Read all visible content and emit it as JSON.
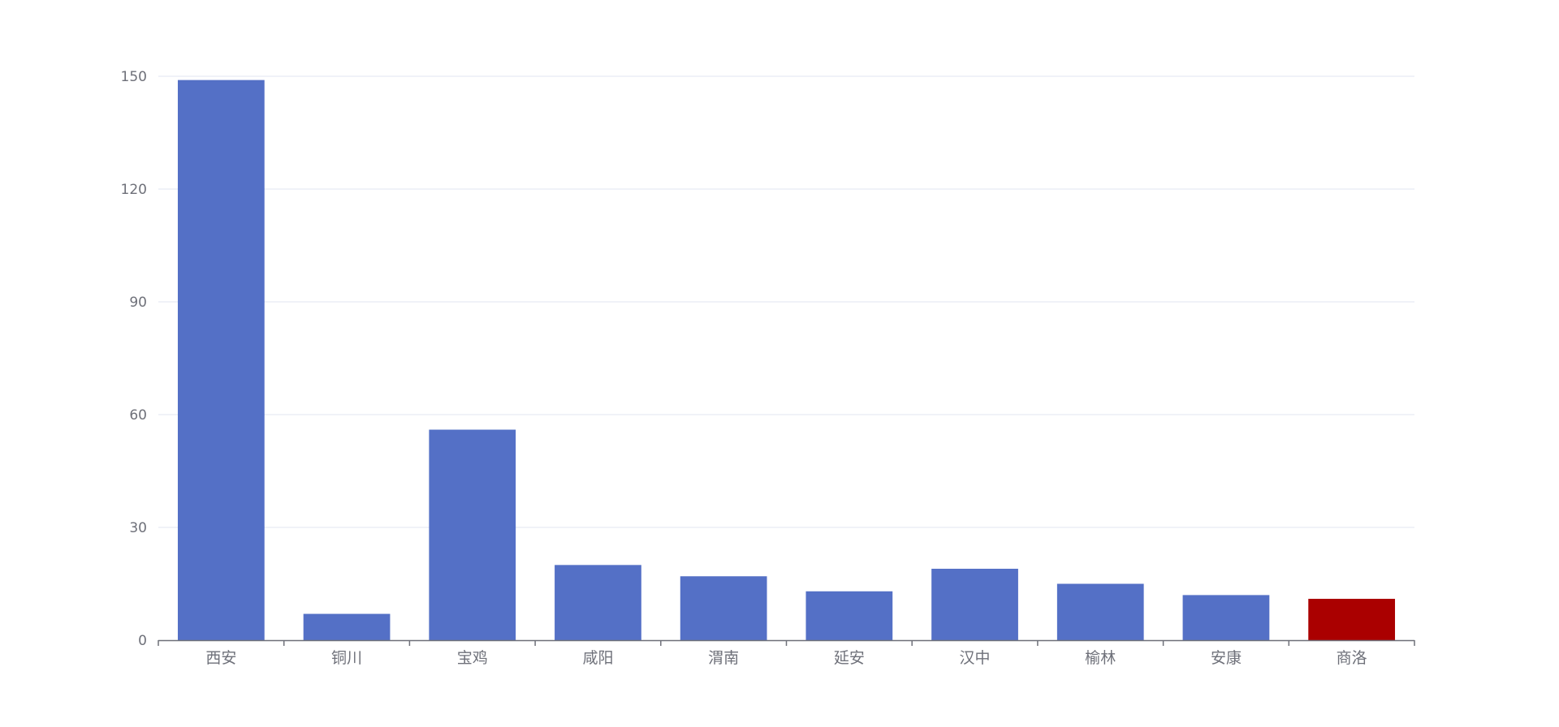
{
  "chart_data": {
    "type": "bar",
    "categories": [
      "西安",
      "铜川",
      "宝鸡",
      "咸阳",
      "渭南",
      "延安",
      "汉中",
      "榆林",
      "安康",
      "商洛"
    ],
    "values": [
      149,
      7,
      56,
      20,
      17,
      13,
      19,
      15,
      12,
      11
    ],
    "ylim": [
      0,
      150
    ],
    "yticks": [
      0,
      30,
      60,
      90,
      120,
      150
    ],
    "grid": true,
    "bar_color": "#5470c6",
    "highlight_color": "#aa0000",
    "highlight_category": "商洛",
    "axis_color": "#6e7079",
    "grid_color": "#e0e6f1",
    "label_color": "#6e7079"
  }
}
